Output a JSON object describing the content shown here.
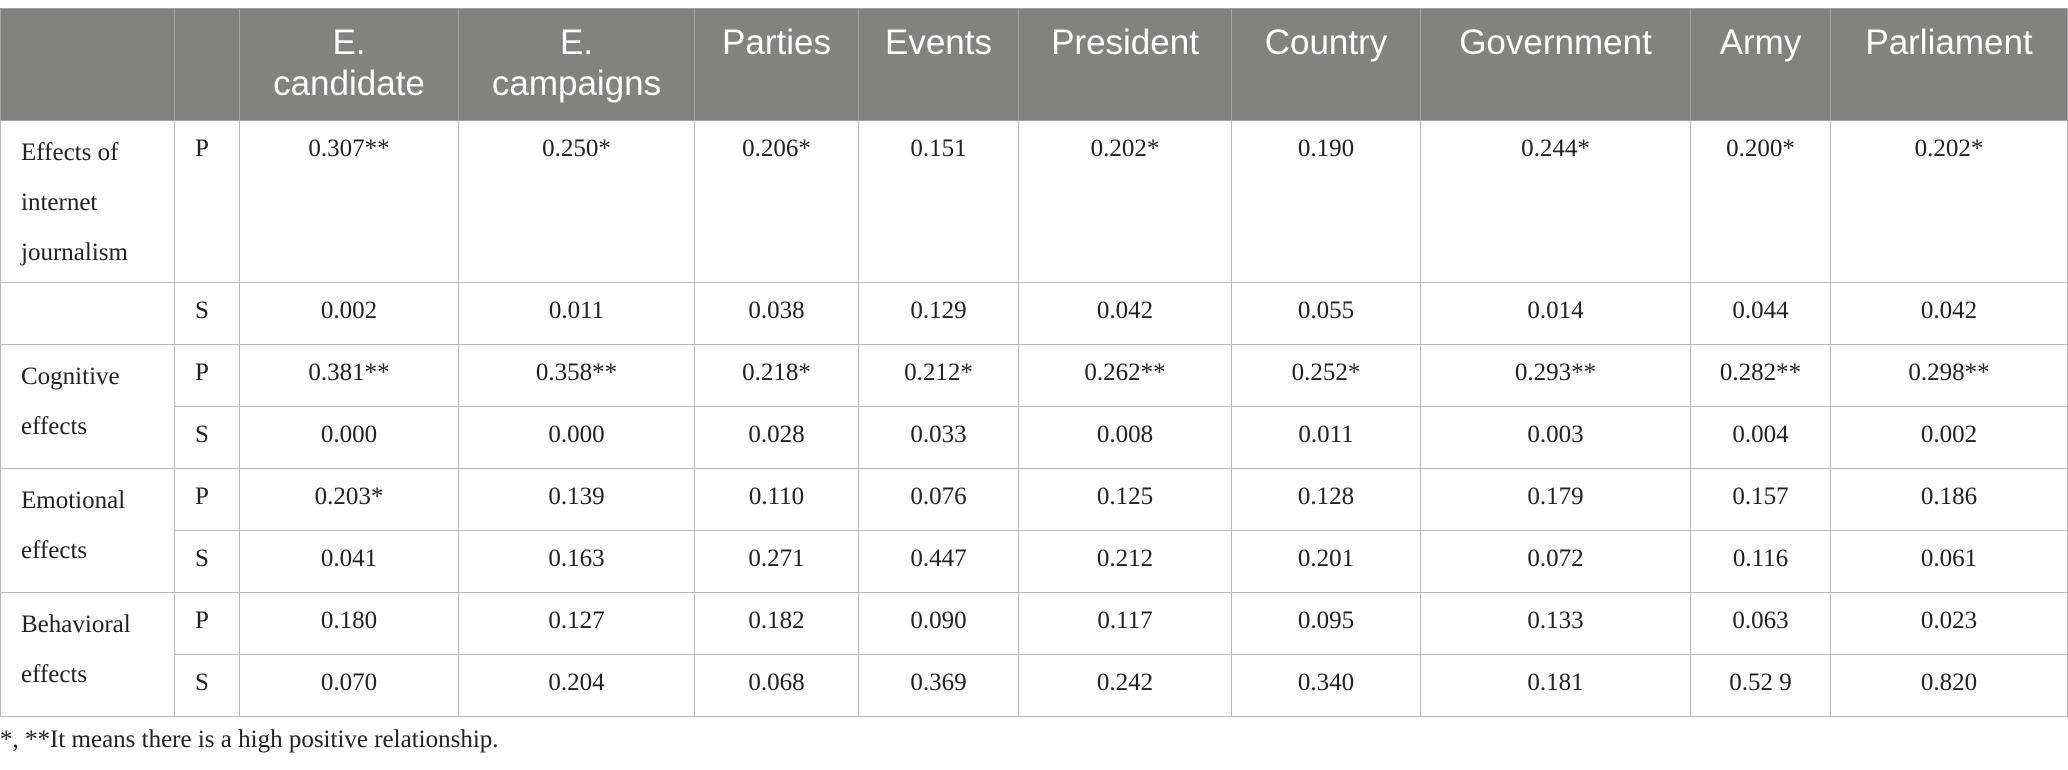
{
  "table": {
    "headers": [
      "",
      "",
      "E.\ncandidate",
      "E.\ncampaigns",
      "Parties",
      "Events",
      "President",
      "Country",
      "Government",
      "Army",
      "Parliament"
    ],
    "rows": [
      {
        "label": "Effects of internet journalism",
        "stat": "P",
        "values": [
          "0.307**",
          "0.250*",
          "0.206*",
          "0.151",
          "0.202*",
          "0.190",
          "0.244*",
          "0.200*",
          "0.202*"
        ]
      },
      {
        "label": "",
        "stat": "S",
        "values": [
          "0.002",
          "0.011",
          "0.038",
          "0.129",
          "0.042",
          "0.055",
          "0.014",
          "0.044",
          "0.042"
        ]
      },
      {
        "label": "Cognitive effects",
        "stat": "P",
        "values": [
          "0.381**",
          "0.358**",
          "0.218*",
          "0.212*",
          "0.262**",
          "0.252*",
          "0.293**",
          "0.282**",
          "0.298**"
        ]
      },
      {
        "label": "",
        "stat": "S",
        "values": [
          "0.000",
          "0.000",
          "0.028",
          "0.033",
          "0.008",
          "0.011",
          "0.003",
          "0.004",
          "0.002"
        ]
      },
      {
        "label": "Emotional effects",
        "stat": "P",
        "values": [
          "0.203*",
          "0.139",
          "0.110",
          "0.076",
          "0.125",
          "0.128",
          "0.179",
          "0.157",
          "0.186"
        ]
      },
      {
        "label": "",
        "stat": "S",
        "values": [
          "0.041",
          "0.163",
          "0.271",
          "0.447",
          "0.212",
          "0.201",
          "0.072",
          "0.116",
          "0.061"
        ]
      },
      {
        "label": "Behavioral effects",
        "stat": "P",
        "values": [
          "0.180",
          "0.127",
          "0.182",
          "0.090",
          "0.117",
          "0.095",
          "0.133",
          "0.063",
          "0.023"
        ]
      },
      {
        "label": "",
        "stat": "S",
        "values": [
          "0.070",
          "0.204",
          "0.068",
          "0.369",
          "0.242",
          "0.340",
          "0.181",
          "0.52 9",
          "0.820"
        ]
      }
    ]
  },
  "footnote": "*, **It means there is a high positive relationship."
}
